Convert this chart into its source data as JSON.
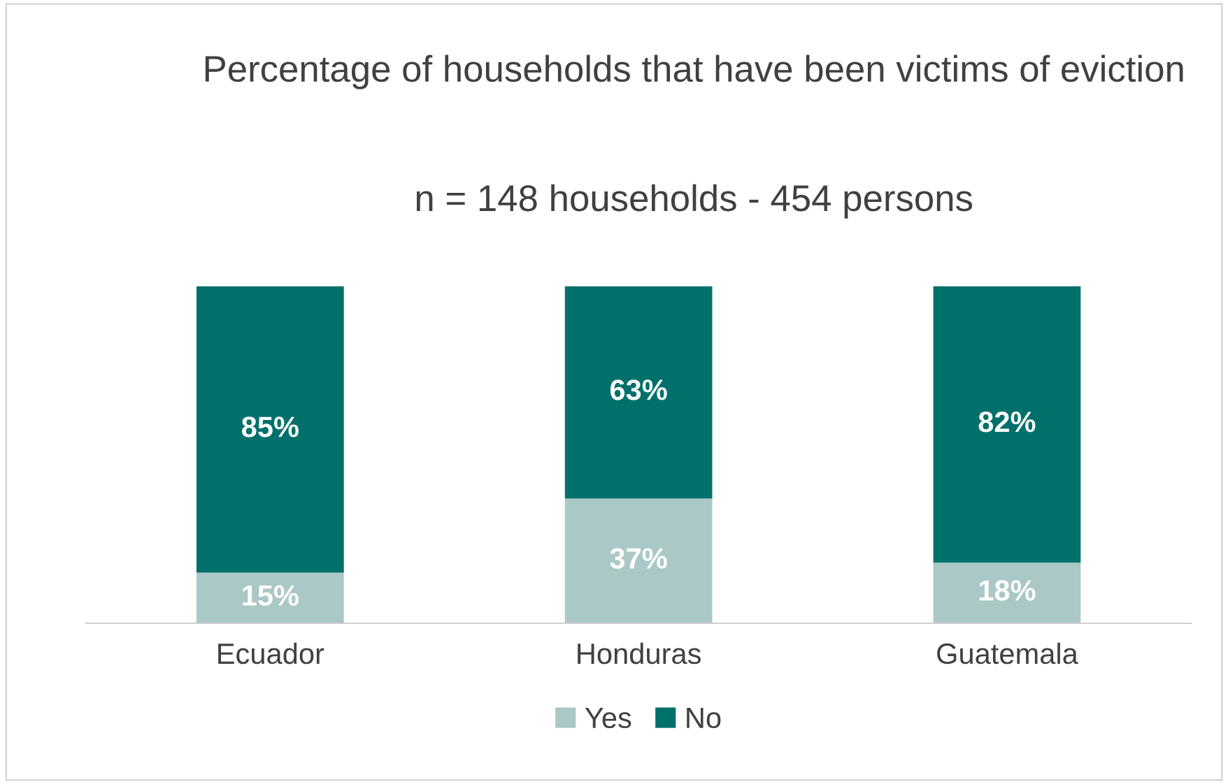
{
  "chart_data": {
    "type": "bar",
    "title": "Percentage of households that have been victims of eviction",
    "subtitle": "n = 148 households - 454 persons",
    "categories": [
      "Ecuador",
      "Honduras",
      "Guatemala"
    ],
    "stacked": true,
    "data_labels": true,
    "grid": false,
    "legend": "bottom",
    "series": [
      {
        "name": "Yes",
        "color": "#aac8c6",
        "values": [
          15,
          37,
          18
        ],
        "value_labels": [
          "15%",
          "37%",
          "18%"
        ]
      },
      {
        "name": "No",
        "color": "#00706b",
        "values": [
          85,
          63,
          82
        ],
        "value_labels": [
          "85%",
          "63%",
          "82%"
        ]
      }
    ]
  }
}
